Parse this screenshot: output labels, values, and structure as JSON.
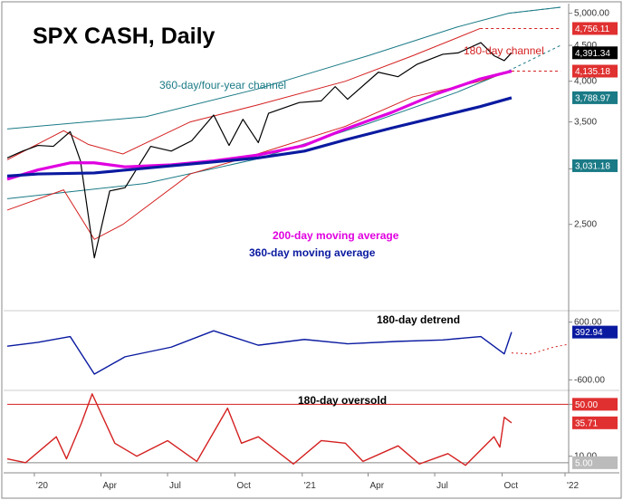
{
  "chart_data": {
    "type": "line",
    "title": "SPX CASH, Daily",
    "x_ticks": [
      "'20",
      "Apr",
      "Jul",
      "Oct",
      "'21",
      "Apr",
      "Jul",
      "Oct",
      "'22"
    ],
    "panels": [
      {
        "name": "price",
        "y_ticks": [
          2500,
          3000,
          3500,
          4000,
          4500,
          5000
        ],
        "y_tick_labels": [
          "2,500",
          "",
          "3,500",
          "4,000",
          "4,500",
          "5,000.00"
        ],
        "ylim": [
          1900,
          5100
        ],
        "scale": "log",
        "series": [
          {
            "label": "",
            "color": "#000000",
            "x": [
              "2019-11-25",
              "2019-12-16",
              "2020-01-06",
              "2020-01-27",
              "2020-02-19",
              "2020-03-04",
              "2020-03-23",
              "2020-04-13",
              "2020-05-04",
              "2020-06-08",
              "2020-07-06",
              "2020-08-03",
              "2020-09-02",
              "2020-09-23",
              "2020-10-12",
              "2020-11-02",
              "2020-11-16",
              "2020-12-28",
              "2021-01-27",
              "2021-02-15",
              "2021-03-04",
              "2021-04-15",
              "2021-05-12",
              "2021-06-07",
              "2021-07-12",
              "2021-08-02",
              "2021-09-02",
              "2021-09-20",
              "2021-10-04",
              "2021-10-14"
            ],
            "values": [
              3110,
              3180,
              3240,
              3230,
              3390,
              3080,
              2240,
              2790,
              2820,
              3230,
              3180,
              3290,
              3580,
              3240,
              3530,
              3270,
              3600,
              3730,
              3750,
              3930,
              3770,
              4120,
              4060,
              4230,
              4370,
              4390,
              4540,
              4350,
              4280,
              4391.34
            ]
          },
          {
            "label": "200-day moving average",
            "color": "#e000e0",
            "x": [
              "2019-11-25",
              "2020-01-06",
              "2020-02-19",
              "2020-03-23",
              "2020-05-04",
              "2020-07-06",
              "2020-09-02",
              "2020-11-02",
              "2021-01-04",
              "2021-03-01",
              "2021-05-03",
              "2021-07-01",
              "2021-09-01",
              "2021-10-14"
            ],
            "values": [
              2900,
              2990,
              3060,
              3060,
              3020,
              3040,
              3080,
              3140,
              3240,
              3420,
              3610,
              3830,
              4030,
              4135.18
            ]
          },
          {
            "label": "360-day moving average",
            "color": "#0a1aa0",
            "x": [
              "2019-11-25",
              "2020-01-06",
              "2020-03-23",
              "2020-07-06",
              "2020-11-02",
              "2021-01-04",
              "2021-03-01",
              "2021-05-03",
              "2021-07-01",
              "2021-09-01",
              "2021-10-14"
            ],
            "values": [
              2930,
              2950,
              2960,
              3030,
              3110,
              3180,
              3300,
              3430,
              3550,
              3680,
              3788.97
            ]
          }
        ],
        "annotations": [
          {
            "text": "360-day/four-year channel",
            "color": "#1a7a86"
          },
          {
            "text": "180-day channel",
            "color": "#d42020"
          },
          {
            "text": "200-day moving average",
            "color": "#e000e0"
          },
          {
            "text": "360-day moving average",
            "color": "#0a1aa0"
          }
        ],
        "badges": [
          {
            "text": "4,756.11",
            "fg": "#ffffff",
            "bg": "#e03030",
            "value": 4756.11
          },
          {
            "text": "4,391.34",
            "fg": "#ffffff",
            "bg": "#000000",
            "value": 4391.34
          },
          {
            "text": "4,135.18",
            "fg": "#ffffff",
            "bg": "#e03030",
            "value": 4135.18
          },
          {
            "text": "3,788.97",
            "fg": "#ffffff",
            "bg": "#1a7a86",
            "value": 3788.97
          },
          {
            "text": "3,031.18",
            "fg": "#ffffff",
            "bg": "#1a7a86",
            "value": 3031.18
          }
        ]
      },
      {
        "name": "180-day detrend",
        "y_ticks": [
          600,
          -600
        ],
        "y_tick_labels": [
          "600.00",
          "-600.00"
        ],
        "ylim": [
          -800,
          800
        ],
        "series": [
          {
            "label": "180-day detrend",
            "color": "#0a1aa0",
            "x": [
              "2019-11-25",
              "2020-01-06",
              "2020-02-19",
              "2020-03-23",
              "2020-05-04",
              "2020-07-06",
              "2020-09-02",
              "2020-11-02",
              "2021-01-04",
              "2021-03-04",
              "2021-05-12",
              "2021-07-12",
              "2021-09-02",
              "2021-10-04",
              "2021-10-14"
            ],
            "values": [
              100,
              180,
              300,
              -480,
              -120,
              80,
              420,
              120,
              240,
              150,
              200,
              230,
              300,
              -60,
              392.94
            ]
          }
        ],
        "badges": [
          {
            "text": "392.94",
            "fg": "#ffffff",
            "bg": "#0a1aa0",
            "value": 392.94
          }
        ]
      },
      {
        "name": "180-day oversold",
        "y_ticks": [
          50,
          10
        ],
        "y_tick_labels": [
          "50.00",
          "10.00"
        ],
        "ylim": [
          0,
          60
        ],
        "series": [
          {
            "label": "180-day oversold",
            "color": "#d42020",
            "x": [
              "2019-11-25",
              "2019-12-20",
              "2020-01-31",
              "2020-02-14",
              "2020-03-05",
              "2020-03-20",
              "2020-04-20",
              "2020-05-20",
              "2020-07-01",
              "2020-08-10",
              "2020-09-21",
              "2020-10-10",
              "2020-11-02",
              "2020-12-20",
              "2021-01-27",
              "2021-03-01",
              "2021-03-25",
              "2021-05-12",
              "2021-06-10",
              "2021-07-19",
              "2021-08-12",
              "2021-09-20",
              "2021-09-28",
              "2021-10-04",
              "2021-10-14"
            ],
            "values": [
              8,
              5,
              25,
              8,
              35,
              58,
              20,
              10,
              22,
              6,
              47,
              20,
              25,
              4,
              22,
              20,
              6,
              18,
              4,
              12,
              3,
              25,
              17,
              40,
              35.71
            ]
          }
        ],
        "badges": [
          {
            "text": "50.00",
            "fg": "#ffffff",
            "bg": "#e03030",
            "value": 50
          },
          {
            "text": "35.71",
            "fg": "#ffffff",
            "bg": "#e03030",
            "value": 35.71
          },
          {
            "text": "5.00",
            "fg": "#ffffff",
            "bg": "#bbbbbb",
            "value": 5
          }
        ]
      }
    ]
  }
}
